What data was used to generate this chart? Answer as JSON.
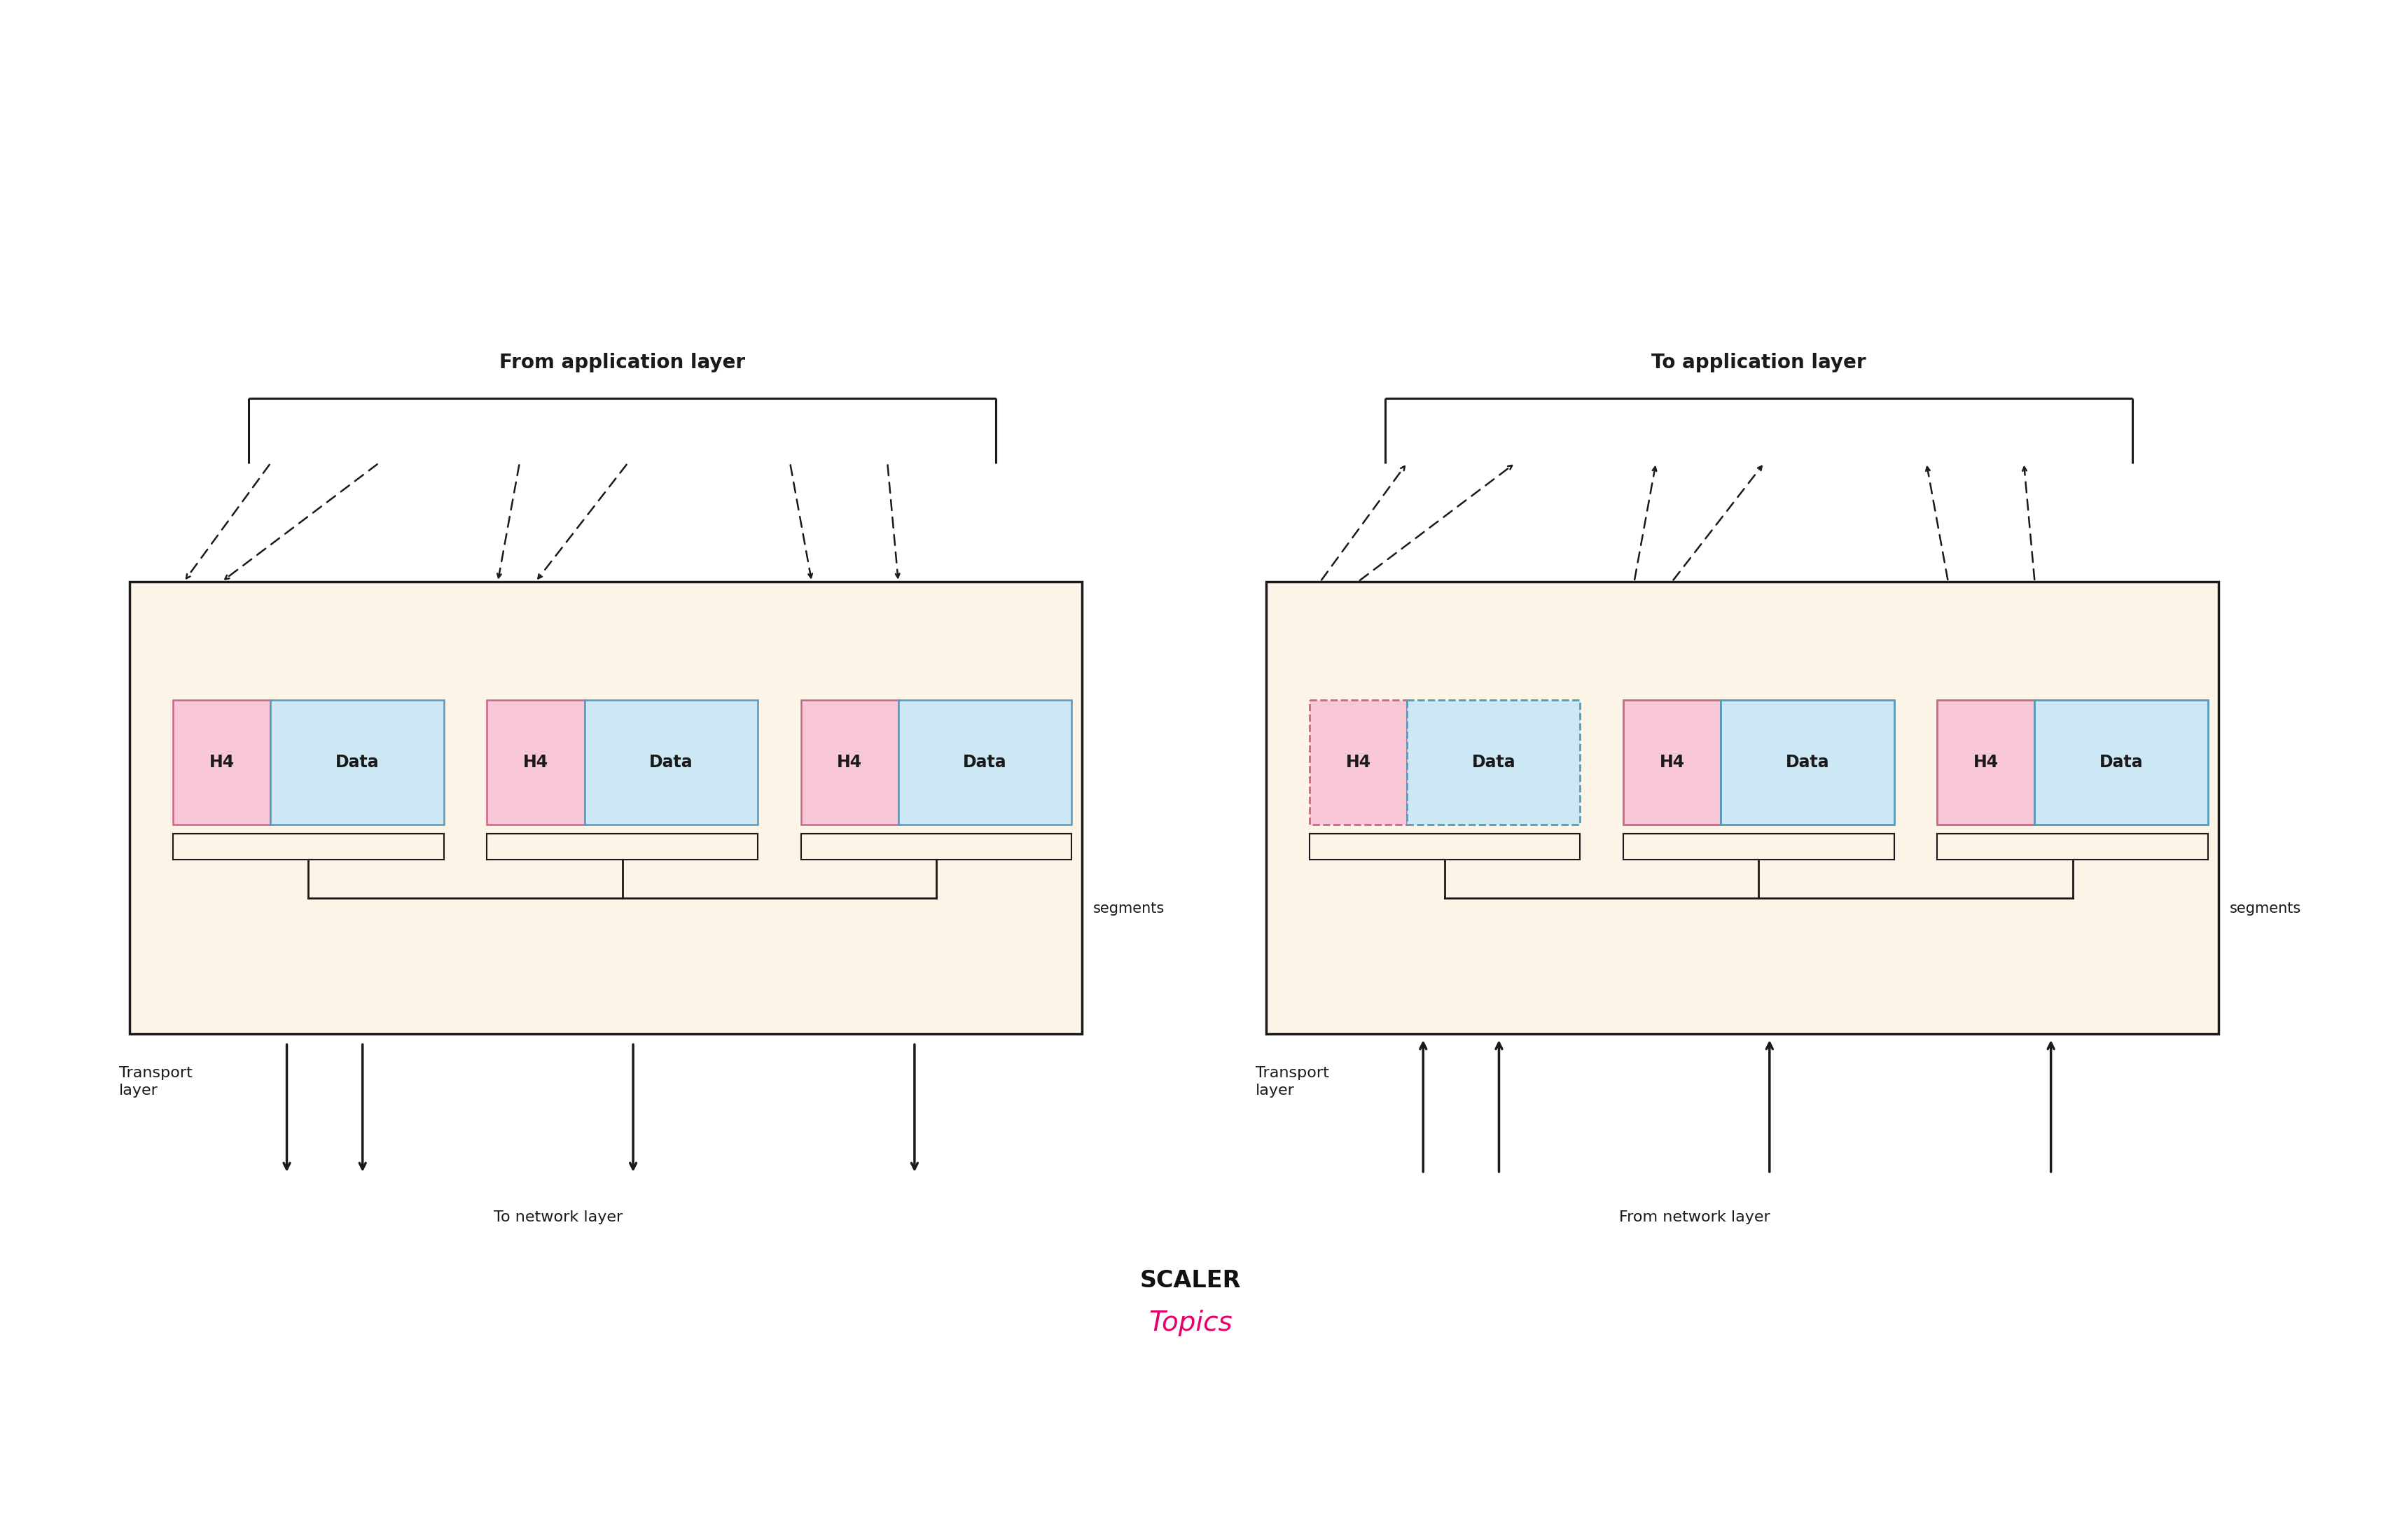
{
  "bg_color": "#ffffff",
  "panel_bg": "#fdf4e8",
  "panel_border": "#1a1a1a",
  "h4_color": "#f9c8d8",
  "h4_border": "#cc6688",
  "data_color": "#cce8f4",
  "data_border": "#5599bb",
  "left_title": "From application layer",
  "right_title": "To application layer",
  "left_bottom_label": "Transport\nlayer",
  "right_bottom_label": "Transport\nlayer",
  "left_arrow_label": "To network layer",
  "right_arrow_label": "From network layer",
  "segments_label": "segments",
  "scaler_text": "SCALER",
  "topics_text": "Topics",
  "pink_accent": "#e8006a",
  "black": "#1a1a1a"
}
